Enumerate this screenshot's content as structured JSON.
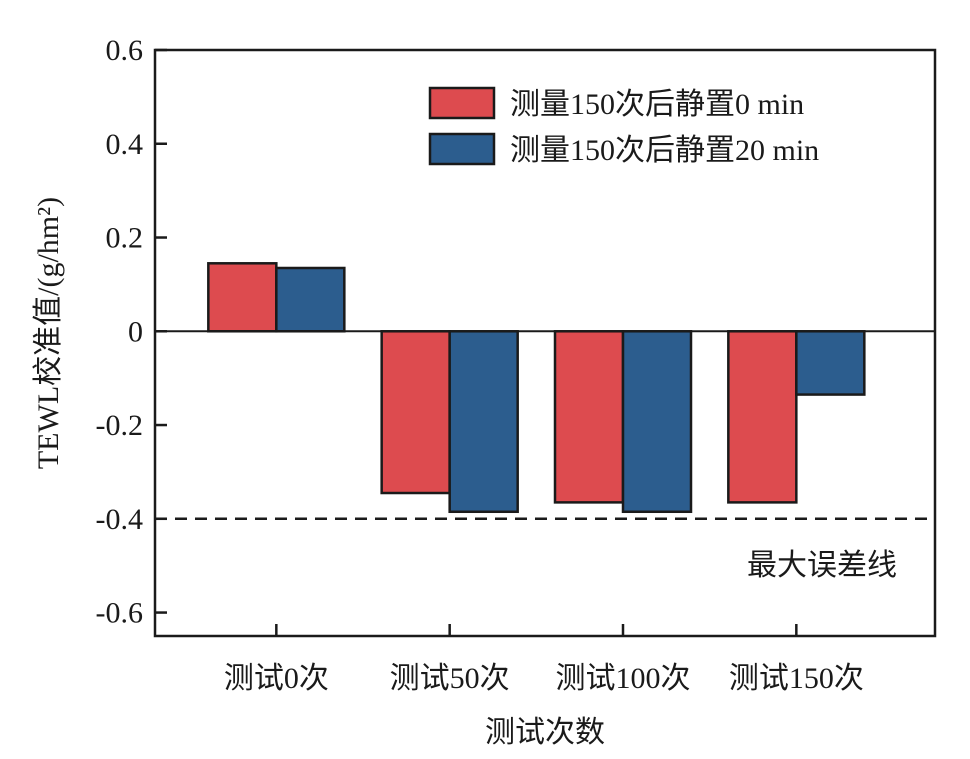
{
  "chart_data": {
    "type": "bar",
    "categories": [
      "测试0次",
      "测试50次",
      "测试100次",
      "测试150次"
    ],
    "series": [
      {
        "name": "测量150次后静置0 min",
        "color": "#dd4b4f",
        "values": [
          0.145,
          -0.345,
          -0.365,
          -0.365
        ]
      },
      {
        "name": "测量150次后静置20 min",
        "color": "#2c5d8e",
        "values": [
          0.135,
          -0.385,
          -0.385,
          -0.135
        ]
      }
    ],
    "xlabel": "测试次数",
    "ylabel": "TEWL校准值/(g/hm²)",
    "ylim": [
      -0.65,
      0.6
    ],
    "yticks": [
      0.6,
      0.4,
      0.2,
      0,
      -0.2,
      -0.4,
      -0.6
    ],
    "ytick_labels": [
      "0.6",
      "0.4",
      "0.2",
      "0",
      "-0.2",
      "-0.4",
      "-0.6"
    ],
    "reference_line": {
      "y": -0.4,
      "style": "dashed",
      "label": "最大误差线"
    },
    "zero_line": true,
    "grid": false,
    "legend_position": "top-right"
  }
}
